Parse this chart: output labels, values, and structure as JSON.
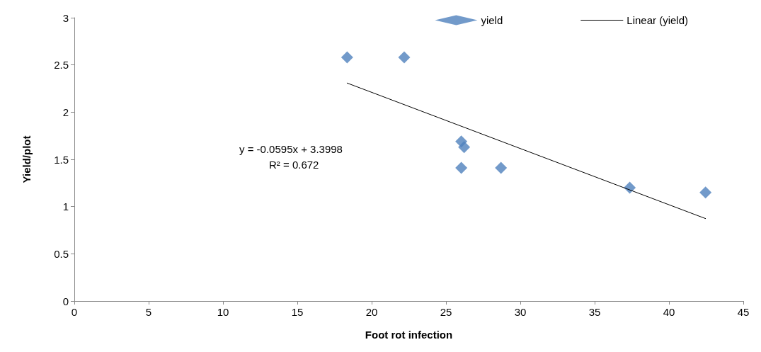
{
  "chart_data": {
    "type": "scatter",
    "xlabel": "Foot rot infection",
    "ylabel": "Yield/plot",
    "xlim": [
      0,
      45
    ],
    "xticks": [
      0,
      5,
      10,
      15,
      20,
      25,
      30,
      35,
      40,
      45
    ],
    "ylim": [
      0,
      3
    ],
    "yticks": [
      0,
      0.5,
      1,
      1.5,
      2,
      2.5,
      3
    ],
    "grid": false,
    "legend": "top right",
    "marker": "diamond",
    "series": [
      {
        "name": "yield",
        "color": "#4f81bd",
        "x": [
          18.35,
          22.19,
          26.03,
          26.22,
          26.03,
          28.7,
          37.36,
          42.46
        ],
        "values": [
          2.58,
          2.58,
          1.69,
          1.63,
          1.41,
          1.41,
          1.2,
          1.15
        ]
      },
      {
        "name": "Linear (yield)",
        "type": "line",
        "color": "#000000",
        "marker": "none",
        "x": [
          18.35,
          42.46
        ],
        "values": [
          2.308,
          0.873
        ]
      }
    ],
    "annotations": [
      "y = -0.0595x + 3.3998",
      "R² = 0.672"
    ]
  }
}
